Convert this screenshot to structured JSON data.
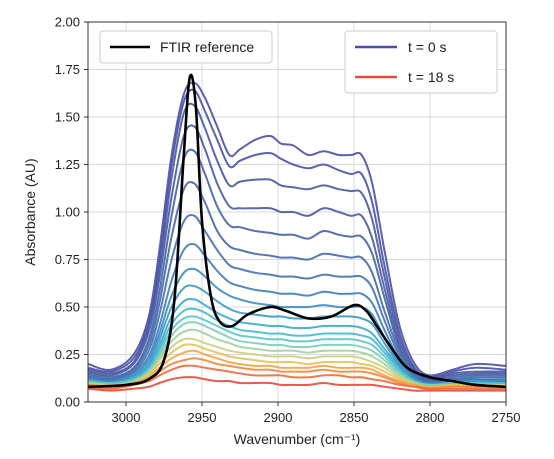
{
  "chart_data": {
    "type": "line",
    "xlabel": "Wavenumber (cm⁻¹)",
    "ylabel": "Absorbance (AU)",
    "xlim": [
      3025,
      2750
    ],
    "ylim": [
      0,
      2.0
    ],
    "x_reversed": true,
    "grid": true,
    "x_ticks": [
      3000,
      2950,
      2900,
      2850,
      2800,
      2750
    ],
    "x_tick_labels": [
      "3000",
      "2950",
      "2900",
      "2850",
      "2800",
      "2750"
    ],
    "y_ticks": [
      0,
      0.25,
      0.5,
      0.75,
      1.0,
      1.25,
      1.5,
      1.75,
      2.0
    ],
    "y_tick_labels": [
      "0.00",
      "0.25",
      "0.50",
      "0.75",
      "1.00",
      "1.25",
      "1.50",
      "1.75",
      "2.00"
    ],
    "legends": [
      {
        "placement": "top-left",
        "entries": [
          {
            "label": "FTIR reference",
            "color": "#000000"
          }
        ]
      },
      {
        "placement": "top-right",
        "entries": [
          {
            "label": "t = 0 s",
            "color": "#4a4fa8"
          },
          {
            "label": "t = 18 s",
            "color": "#e8493a"
          }
        ]
      }
    ],
    "reference": {
      "name": "FTIR reference",
      "color": "#000000",
      "x": [
        3025,
        3000,
        2985,
        2975,
        2968,
        2962,
        2958,
        2954,
        2950,
        2944,
        2938,
        2930,
        2920,
        2905,
        2895,
        2880,
        2865,
        2850,
        2842,
        2835,
        2825,
        2815,
        2800,
        2785,
        2770,
        2750
      ],
      "y": [
        0.08,
        0.09,
        0.12,
        0.22,
        0.55,
        1.3,
        1.71,
        1.55,
        0.95,
        0.55,
        0.42,
        0.4,
        0.46,
        0.5,
        0.48,
        0.44,
        0.45,
        0.51,
        0.48,
        0.4,
        0.28,
        0.18,
        0.13,
        0.11,
        0.09,
        0.08
      ]
    },
    "series_shape": {
      "x": [
        3025,
        3010,
        2995,
        2985,
        2978,
        2970,
        2962,
        2955,
        2948,
        2940,
        2932,
        2925,
        2915,
        2905,
        2898,
        2890,
        2880,
        2870,
        2860,
        2852,
        2845,
        2838,
        2830,
        2820,
        2810,
        2800,
        2785,
        2770,
        2750
      ]
    },
    "series": [
      {
        "color": "#4a4fa8",
        "values": [
          0.2,
          0.17,
          0.25,
          0.45,
          0.8,
          1.3,
          1.62,
          1.68,
          1.6,
          1.45,
          1.3,
          1.33,
          1.38,
          1.4,
          1.36,
          1.35,
          1.3,
          1.32,
          1.3,
          1.3,
          1.3,
          1.15,
          0.8,
          0.4,
          0.2,
          0.14,
          0.17,
          0.2,
          0.19
        ]
      },
      {
        "color": "#4852a6",
        "values": [
          0.18,
          0.16,
          0.23,
          0.42,
          0.75,
          1.25,
          1.58,
          1.64,
          1.53,
          1.38,
          1.24,
          1.27,
          1.3,
          1.31,
          1.28,
          1.25,
          1.23,
          1.25,
          1.22,
          1.2,
          1.2,
          1.05,
          0.72,
          0.36,
          0.18,
          0.13,
          0.16,
          0.18,
          0.17
        ]
      },
      {
        "color": "#4756a4",
        "values": [
          0.17,
          0.15,
          0.21,
          0.4,
          0.7,
          1.18,
          1.52,
          1.56,
          1.44,
          1.27,
          1.14,
          1.16,
          1.17,
          1.17,
          1.14,
          1.13,
          1.12,
          1.14,
          1.12,
          1.11,
          1.1,
          0.96,
          0.66,
          0.33,
          0.17,
          0.12,
          0.15,
          0.16,
          0.16
        ]
      },
      {
        "color": "#465aa3",
        "values": [
          0.16,
          0.14,
          0.2,
          0.37,
          0.65,
          1.08,
          1.4,
          1.45,
          1.33,
          1.15,
          1.03,
          1.02,
          1.02,
          1.02,
          1.0,
          1.0,
          0.98,
          1.02,
          1.0,
          0.98,
          0.98,
          0.86,
          0.6,
          0.3,
          0.16,
          0.12,
          0.14,
          0.15,
          0.15
        ]
      },
      {
        "color": "#4560a6",
        "values": [
          0.15,
          0.13,
          0.18,
          0.33,
          0.58,
          0.98,
          1.28,
          1.32,
          1.2,
          1.03,
          0.93,
          0.92,
          0.9,
          0.89,
          0.88,
          0.88,
          0.86,
          0.9,
          0.88,
          0.87,
          0.87,
          0.78,
          0.55,
          0.28,
          0.15,
          0.11,
          0.13,
          0.14,
          0.14
        ]
      },
      {
        "color": "#4468ab",
        "values": [
          0.14,
          0.12,
          0.17,
          0.3,
          0.52,
          0.87,
          1.12,
          1.15,
          1.05,
          0.9,
          0.82,
          0.8,
          0.78,
          0.77,
          0.76,
          0.76,
          0.75,
          0.78,
          0.77,
          0.76,
          0.76,
          0.68,
          0.48,
          0.26,
          0.14,
          0.11,
          0.12,
          0.13,
          0.13
        ]
      },
      {
        "color": "#4271b2",
        "values": [
          0.13,
          0.12,
          0.16,
          0.27,
          0.46,
          0.75,
          0.95,
          0.98,
          0.9,
          0.8,
          0.72,
          0.7,
          0.68,
          0.67,
          0.66,
          0.66,
          0.65,
          0.67,
          0.66,
          0.66,
          0.66,
          0.6,
          0.43,
          0.24,
          0.13,
          0.1,
          0.12,
          0.12,
          0.12
        ]
      },
      {
        "color": "#3f7cba",
        "values": [
          0.13,
          0.11,
          0.15,
          0.24,
          0.4,
          0.64,
          0.8,
          0.83,
          0.77,
          0.69,
          0.63,
          0.61,
          0.59,
          0.58,
          0.57,
          0.57,
          0.56,
          0.58,
          0.57,
          0.57,
          0.57,
          0.52,
          0.38,
          0.22,
          0.13,
          0.1,
          0.11,
          0.12,
          0.11
        ]
      },
      {
        "color": "#3b89c2",
        "values": [
          0.12,
          0.11,
          0.14,
          0.22,
          0.36,
          0.56,
          0.68,
          0.7,
          0.66,
          0.6,
          0.56,
          0.54,
          0.52,
          0.51,
          0.5,
          0.5,
          0.5,
          0.51,
          0.5,
          0.5,
          0.5,
          0.46,
          0.34,
          0.2,
          0.12,
          0.1,
          0.11,
          0.11,
          0.11
        ]
      },
      {
        "color": "#3a98c8",
        "values": [
          0.12,
          0.1,
          0.13,
          0.2,
          0.33,
          0.5,
          0.6,
          0.61,
          0.58,
          0.53,
          0.49,
          0.47,
          0.46,
          0.45,
          0.45,
          0.44,
          0.44,
          0.45,
          0.45,
          0.45,
          0.44,
          0.41,
          0.31,
          0.19,
          0.12,
          0.09,
          0.1,
          0.11,
          0.1
        ]
      },
      {
        "color": "#3aa8cf",
        "values": [
          0.11,
          0.1,
          0.13,
          0.19,
          0.3,
          0.45,
          0.53,
          0.54,
          0.51,
          0.47,
          0.44,
          0.42,
          0.41,
          0.4,
          0.4,
          0.39,
          0.39,
          0.4,
          0.4,
          0.4,
          0.39,
          0.36,
          0.28,
          0.18,
          0.11,
          0.09,
          0.1,
          0.1,
          0.1
        ]
      },
      {
        "color": "#42b8cf",
        "values": [
          0.11,
          0.1,
          0.12,
          0.18,
          0.28,
          0.41,
          0.48,
          0.49,
          0.47,
          0.43,
          0.4,
          0.38,
          0.37,
          0.36,
          0.36,
          0.35,
          0.35,
          0.36,
          0.36,
          0.36,
          0.35,
          0.33,
          0.26,
          0.17,
          0.11,
          0.09,
          0.1,
          0.1,
          0.1
        ]
      },
      {
        "color": "#5cc4c6",
        "values": [
          0.11,
          0.1,
          0.12,
          0.17,
          0.26,
          0.38,
          0.44,
          0.45,
          0.43,
          0.4,
          0.37,
          0.35,
          0.34,
          0.33,
          0.33,
          0.32,
          0.32,
          0.33,
          0.33,
          0.33,
          0.32,
          0.3,
          0.24,
          0.16,
          0.11,
          0.09,
          0.1,
          0.1,
          0.09
        ]
      },
      {
        "color": "#7ccdb6",
        "values": [
          0.1,
          0.09,
          0.11,
          0.16,
          0.24,
          0.35,
          0.41,
          0.42,
          0.4,
          0.37,
          0.34,
          0.32,
          0.31,
          0.3,
          0.3,
          0.29,
          0.29,
          0.3,
          0.3,
          0.3,
          0.29,
          0.27,
          0.22,
          0.15,
          0.1,
          0.09,
          0.09,
          0.09,
          0.09
        ]
      },
      {
        "color": "#9ed29d",
        "values": [
          0.1,
          0.09,
          0.11,
          0.16,
          0.23,
          0.32,
          0.37,
          0.38,
          0.36,
          0.33,
          0.31,
          0.29,
          0.28,
          0.27,
          0.27,
          0.27,
          0.26,
          0.27,
          0.27,
          0.27,
          0.26,
          0.24,
          0.2,
          0.14,
          0.1,
          0.08,
          0.09,
          0.09,
          0.09
        ]
      },
      {
        "color": "#c5d07e",
        "values": [
          0.1,
          0.09,
          0.1,
          0.15,
          0.22,
          0.29,
          0.33,
          0.33,
          0.31,
          0.29,
          0.27,
          0.26,
          0.25,
          0.24,
          0.24,
          0.24,
          0.23,
          0.24,
          0.24,
          0.24,
          0.23,
          0.21,
          0.18,
          0.13,
          0.1,
          0.08,
          0.09,
          0.09,
          0.09
        ]
      },
      {
        "color": "#e6c05a",
        "values": [
          0.09,
          0.08,
          0.1,
          0.14,
          0.2,
          0.26,
          0.3,
          0.3,
          0.28,
          0.26,
          0.24,
          0.23,
          0.22,
          0.21,
          0.21,
          0.21,
          0.2,
          0.21,
          0.21,
          0.21,
          0.2,
          0.19,
          0.16,
          0.12,
          0.09,
          0.08,
          0.09,
          0.09,
          0.08
        ]
      },
      {
        "color": "#f3a444",
        "values": [
          0.09,
          0.08,
          0.1,
          0.13,
          0.18,
          0.23,
          0.26,
          0.27,
          0.25,
          0.23,
          0.21,
          0.2,
          0.19,
          0.19,
          0.18,
          0.18,
          0.18,
          0.19,
          0.18,
          0.18,
          0.18,
          0.17,
          0.14,
          0.11,
          0.09,
          0.08,
          0.08,
          0.08,
          0.08
        ]
      },
      {
        "color": "#f3863c",
        "values": [
          0.09,
          0.08,
          0.09,
          0.12,
          0.16,
          0.2,
          0.22,
          0.23,
          0.22,
          0.2,
          0.19,
          0.18,
          0.17,
          0.17,
          0.16,
          0.16,
          0.16,
          0.17,
          0.16,
          0.16,
          0.16,
          0.15,
          0.13,
          0.1,
          0.08,
          0.07,
          0.08,
          0.08,
          0.08
        ]
      },
      {
        "color": "#ee6a3a",
        "values": [
          0.08,
          0.07,
          0.09,
          0.11,
          0.14,
          0.17,
          0.19,
          0.19,
          0.18,
          0.17,
          0.16,
          0.15,
          0.14,
          0.14,
          0.14,
          0.13,
          0.13,
          0.14,
          0.14,
          0.13,
          0.13,
          0.12,
          0.11,
          0.09,
          0.08,
          0.07,
          0.07,
          0.07,
          0.07
        ]
      },
      {
        "color": "#e8493a",
        "values": [
          0.07,
          0.06,
          0.07,
          0.08,
          0.1,
          0.12,
          0.13,
          0.13,
          0.12,
          0.11,
          0.11,
          0.1,
          0.1,
          0.1,
          0.09,
          0.09,
          0.09,
          0.1,
          0.09,
          0.09,
          0.09,
          0.09,
          0.08,
          0.07,
          0.06,
          0.06,
          0.06,
          0.06,
          0.06
        ]
      }
    ]
  }
}
